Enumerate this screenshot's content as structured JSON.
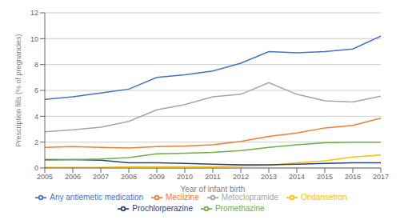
{
  "chart_data": {
    "type": "line",
    "x": [
      2005,
      2006,
      2007,
      2008,
      2009,
      2010,
      2011,
      2012,
      2013,
      2014,
      2015,
      2016,
      2017
    ],
    "series": [
      {
        "name": "Any antiemetic medication",
        "color": "#4472C4",
        "values": [
          5.3,
          5.5,
          5.8,
          6.1,
          7.0,
          7.2,
          7.5,
          8.1,
          9.0,
          8.9,
          9.0,
          9.2,
          10.2
        ]
      },
      {
        "name": "Meclizine",
        "color": "#ED7D31",
        "values": [
          1.6,
          1.65,
          1.6,
          1.55,
          1.65,
          1.7,
          1.8,
          2.05,
          2.45,
          2.7,
          3.1,
          3.3,
          3.85
        ]
      },
      {
        "name": "Metoclopramide",
        "color": "#A5A5A5",
        "values": [
          2.8,
          2.95,
          3.15,
          3.6,
          4.5,
          4.9,
          5.5,
          5.7,
          6.6,
          5.7,
          5.2,
          5.1,
          5.55
        ]
      },
      {
        "name": "Ondansetron",
        "color": "#FFC000",
        "values": [
          0.05,
          0.05,
          0.05,
          0.1,
          0.1,
          0.1,
          0.1,
          0.15,
          0.2,
          0.4,
          0.55,
          0.85,
          1.0
        ]
      },
      {
        "name": "Prochlorperazine",
        "color": "#264478",
        "values": [
          0.65,
          0.65,
          0.6,
          0.4,
          0.4,
          0.35,
          0.3,
          0.25,
          0.25,
          0.3,
          0.35,
          0.4,
          0.4
        ]
      },
      {
        "name": "Promethazine",
        "color": "#70AD47",
        "values": [
          0.6,
          0.65,
          0.7,
          0.8,
          1.1,
          1.15,
          1.2,
          1.35,
          1.6,
          1.8,
          1.95,
          2.0,
          2.0
        ]
      }
    ],
    "xlabel": "Year of infant birth",
    "ylabel": "Prescription fills (% of pregnancies)",
    "xlim": [
      2005,
      2017
    ],
    "xticks": [
      2005,
      2006,
      2007,
      2008,
      2009,
      2010,
      2011,
      2012,
      2013,
      2014,
      2015,
      2016,
      2017
    ],
    "ylim": [
      0,
      12
    ],
    "yticks": [
      0,
      2,
      4,
      6,
      8,
      10,
      12
    ],
    "grid": true,
    "legend": "bottom"
  }
}
